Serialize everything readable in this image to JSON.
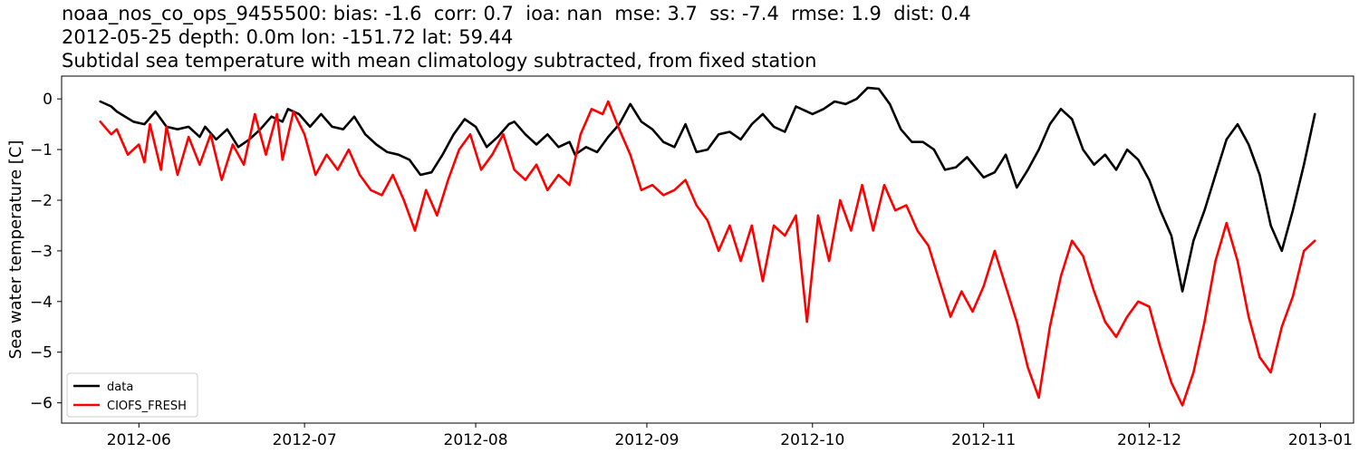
{
  "title_lines": [
    "noaa_nos_co_ops_9455500: bias: -1.6  corr: 0.7  ioa: nan  mse: 3.7  ss: -7.4  rmse: 1.9  dist: 0.4",
    "2012-05-25 depth: 0.0m lon: -151.72 lat: 59.44",
    "Subtidal sea temperature with mean climatology subtracted, from fixed station"
  ],
  "chart_data": {
    "type": "line",
    "title": "noaa_nos_co_ops_9455500: bias: -1.6  corr: 0.7  ioa: nan  mse: 3.7  ss: -7.4  rmse: 1.9  dist: 0.4\n2012-05-25 depth: 0.0m lon: -151.72 lat: 59.44\nSubtidal sea temperature with mean climatology subtracted, from fixed station",
    "xlabel": "",
    "ylabel": "Sea water temperature [C]",
    "xlim": [
      "2012-05-18",
      "2013-01-07"
    ],
    "ylim": [
      -6.4,
      0.45
    ],
    "x_ticks": [
      "2012-06-01",
      "2012-07-01",
      "2012-08-01",
      "2012-09-01",
      "2012-10-01",
      "2012-11-01",
      "2012-12-01",
      "2013-01-01"
    ],
    "x_tick_labels": [
      "2012-06",
      "2012-07",
      "2012-08",
      "2012-09",
      "2012-10",
      "2012-11",
      "2012-12",
      "2013-01"
    ],
    "y_ticks": [
      0,
      -1,
      -2,
      -3,
      -4,
      -5,
      -6
    ],
    "y_tick_labels": [
      "0",
      "−1",
      "−2",
      "−3",
      "−4",
      "−5",
      "−6"
    ],
    "grid": false,
    "legend": {
      "position": "lower-left"
    },
    "series": [
      {
        "name": "data",
        "color": "#000000",
        "points": [
          [
            "2012-05-25",
            -0.05
          ],
          [
            "2012-05-27",
            -0.15
          ],
          [
            "2012-05-28",
            -0.25
          ],
          [
            "2012-05-31",
            -0.45
          ],
          [
            "2012-06-02",
            -0.5
          ],
          [
            "2012-06-04",
            -0.25
          ],
          [
            "2012-06-06",
            -0.55
          ],
          [
            "2012-06-08",
            -0.6
          ],
          [
            "2012-06-10",
            -0.55
          ],
          [
            "2012-06-12",
            -0.75
          ],
          [
            "2012-06-13",
            -0.55
          ],
          [
            "2012-06-15",
            -0.8
          ],
          [
            "2012-06-17",
            -0.6
          ],
          [
            "2012-06-19",
            -0.95
          ],
          [
            "2012-06-21",
            -0.8
          ],
          [
            "2012-06-23",
            -0.6
          ],
          [
            "2012-06-25",
            -0.35
          ],
          [
            "2012-06-27",
            -0.45
          ],
          [
            "2012-06-28",
            -0.2
          ],
          [
            "2012-06-30",
            -0.3
          ],
          [
            "2012-07-02",
            -0.55
          ],
          [
            "2012-07-04",
            -0.3
          ],
          [
            "2012-07-06",
            -0.55
          ],
          [
            "2012-07-08",
            -0.6
          ],
          [
            "2012-07-10",
            -0.35
          ],
          [
            "2012-07-12",
            -0.7
          ],
          [
            "2012-07-14",
            -0.9
          ],
          [
            "2012-07-16",
            -1.05
          ],
          [
            "2012-07-18",
            -1.1
          ],
          [
            "2012-07-20",
            -1.2
          ],
          [
            "2012-07-22",
            -1.5
          ],
          [
            "2012-07-24",
            -1.45
          ],
          [
            "2012-07-26",
            -1.1
          ],
          [
            "2012-07-28",
            -0.7
          ],
          [
            "2012-07-30",
            -0.4
          ],
          [
            "2012-08-01",
            -0.55
          ],
          [
            "2012-08-03",
            -0.95
          ],
          [
            "2012-08-05",
            -0.75
          ],
          [
            "2012-08-07",
            -0.5
          ],
          [
            "2012-08-08",
            -0.45
          ],
          [
            "2012-08-10",
            -0.7
          ],
          [
            "2012-08-12",
            -0.9
          ],
          [
            "2012-08-14",
            -0.7
          ],
          [
            "2012-08-16",
            -0.95
          ],
          [
            "2012-08-18",
            -0.85
          ],
          [
            "2012-08-19",
            -1.1
          ],
          [
            "2012-08-21",
            -0.95
          ],
          [
            "2012-08-23",
            -1.05
          ],
          [
            "2012-08-25",
            -0.75
          ],
          [
            "2012-08-27",
            -0.5
          ],
          [
            "2012-08-29",
            -0.1
          ],
          [
            "2012-08-31",
            -0.45
          ],
          [
            "2012-09-02",
            -0.6
          ],
          [
            "2012-09-04",
            -0.85
          ],
          [
            "2012-09-06",
            -0.95
          ],
          [
            "2012-09-08",
            -0.5
          ],
          [
            "2012-09-10",
            -1.05
          ],
          [
            "2012-09-12",
            -1.0
          ],
          [
            "2012-09-14",
            -0.7
          ],
          [
            "2012-09-16",
            -0.65
          ],
          [
            "2012-09-18",
            -0.8
          ],
          [
            "2012-09-20",
            -0.5
          ],
          [
            "2012-09-22",
            -0.3
          ],
          [
            "2012-09-24",
            -0.55
          ],
          [
            "2012-09-26",
            -0.65
          ],
          [
            "2012-09-28",
            -0.15
          ],
          [
            "2012-10-01",
            -0.3
          ],
          [
            "2012-10-03",
            -0.2
          ],
          [
            "2012-10-05",
            -0.05
          ],
          [
            "2012-10-07",
            -0.1
          ],
          [
            "2012-10-09",
            0.0
          ],
          [
            "2012-10-11",
            0.22
          ],
          [
            "2012-10-13",
            0.2
          ],
          [
            "2012-10-15",
            -0.1
          ],
          [
            "2012-10-17",
            -0.6
          ],
          [
            "2012-10-19",
            -0.85
          ],
          [
            "2012-10-21",
            -0.85
          ],
          [
            "2012-10-23",
            -1.0
          ],
          [
            "2012-10-25",
            -1.4
          ],
          [
            "2012-10-27",
            -1.35
          ],
          [
            "2012-10-29",
            -1.15
          ],
          [
            "2012-11-01",
            -1.55
          ],
          [
            "2012-11-03",
            -1.45
          ],
          [
            "2012-11-05",
            -1.1
          ],
          [
            "2012-11-07",
            -1.75
          ],
          [
            "2012-11-09",
            -1.4
          ],
          [
            "2012-11-11",
            -1.0
          ],
          [
            "2012-11-13",
            -0.5
          ],
          [
            "2012-11-15",
            -0.2
          ],
          [
            "2012-11-17",
            -0.4
          ],
          [
            "2012-11-19",
            -1.0
          ],
          [
            "2012-11-21",
            -1.3
          ],
          [
            "2012-11-23",
            -1.1
          ],
          [
            "2012-11-25",
            -1.4
          ],
          [
            "2012-11-27",
            -1.0
          ],
          [
            "2012-11-29",
            -1.2
          ],
          [
            "2012-12-01",
            -1.6
          ],
          [
            "2012-12-03",
            -2.2
          ],
          [
            "2012-12-05",
            -2.7
          ],
          [
            "2012-12-07",
            -3.8
          ],
          [
            "2012-12-09",
            -2.8
          ],
          [
            "2012-12-11",
            -2.2
          ],
          [
            "2012-12-13",
            -1.5
          ],
          [
            "2012-12-15",
            -0.8
          ],
          [
            "2012-12-17",
            -0.5
          ],
          [
            "2012-12-19",
            -0.9
          ],
          [
            "2012-12-21",
            -1.5
          ],
          [
            "2012-12-23",
            -2.5
          ],
          [
            "2012-12-25",
            -3.0
          ],
          [
            "2012-12-27",
            -2.2
          ],
          [
            "2012-12-29",
            -1.3
          ],
          [
            "2012-12-31",
            -0.3
          ]
        ]
      },
      {
        "name": "CIOFS_FRESH",
        "color": "#ff0000",
        "points": [
          [
            "2012-05-25",
            -0.45
          ],
          [
            "2012-05-27",
            -0.7
          ],
          [
            "2012-05-28",
            -0.6
          ],
          [
            "2012-05-30",
            -1.1
          ],
          [
            "2012-06-01",
            -0.9
          ],
          [
            "2012-06-02",
            -1.25
          ],
          [
            "2012-06-03",
            -0.5
          ],
          [
            "2012-06-05",
            -1.4
          ],
          [
            "2012-06-06",
            -0.55
          ],
          [
            "2012-06-08",
            -1.5
          ],
          [
            "2012-06-10",
            -0.75
          ],
          [
            "2012-06-12",
            -1.3
          ],
          [
            "2012-06-14",
            -0.7
          ],
          [
            "2012-06-16",
            -1.6
          ],
          [
            "2012-06-18",
            -0.9
          ],
          [
            "2012-06-20",
            -1.3
          ],
          [
            "2012-06-22",
            -0.3
          ],
          [
            "2012-06-24",
            -1.1
          ],
          [
            "2012-06-26",
            -0.3
          ],
          [
            "2012-06-27",
            -1.2
          ],
          [
            "2012-06-29",
            -0.25
          ],
          [
            "2012-07-01",
            -0.7
          ],
          [
            "2012-07-03",
            -1.5
          ],
          [
            "2012-07-05",
            -1.1
          ],
          [
            "2012-07-07",
            -1.4
          ],
          [
            "2012-07-09",
            -1.0
          ],
          [
            "2012-07-11",
            -1.5
          ],
          [
            "2012-07-13",
            -1.8
          ],
          [
            "2012-07-15",
            -1.9
          ],
          [
            "2012-07-17",
            -1.5
          ],
          [
            "2012-07-19",
            -2.0
          ],
          [
            "2012-07-21",
            -2.6
          ],
          [
            "2012-07-23",
            -1.8
          ],
          [
            "2012-07-25",
            -2.3
          ],
          [
            "2012-07-27",
            -1.6
          ],
          [
            "2012-07-29",
            -1.0
          ],
          [
            "2012-07-31",
            -0.7
          ],
          [
            "2012-08-02",
            -1.4
          ],
          [
            "2012-08-04",
            -1.1
          ],
          [
            "2012-08-06",
            -0.7
          ],
          [
            "2012-08-08",
            -1.4
          ],
          [
            "2012-08-10",
            -1.6
          ],
          [
            "2012-08-12",
            -1.3
          ],
          [
            "2012-08-14",
            -1.8
          ],
          [
            "2012-08-16",
            -1.5
          ],
          [
            "2012-08-18",
            -1.7
          ],
          [
            "2012-08-20",
            -0.7
          ],
          [
            "2012-08-22",
            -0.2
          ],
          [
            "2012-08-24",
            -0.3
          ],
          [
            "2012-08-25",
            -0.05
          ],
          [
            "2012-08-27",
            -0.6
          ],
          [
            "2012-08-29",
            -1.1
          ],
          [
            "2012-08-31",
            -1.8
          ],
          [
            "2012-09-02",
            -1.7
          ],
          [
            "2012-09-04",
            -1.9
          ],
          [
            "2012-09-06",
            -1.8
          ],
          [
            "2012-09-08",
            -1.6
          ],
          [
            "2012-09-10",
            -2.1
          ],
          [
            "2012-09-12",
            -2.4
          ],
          [
            "2012-09-14",
            -3.0
          ],
          [
            "2012-09-16",
            -2.5
          ],
          [
            "2012-09-18",
            -3.2
          ],
          [
            "2012-09-20",
            -2.5
          ],
          [
            "2012-09-22",
            -3.6
          ],
          [
            "2012-09-24",
            -2.5
          ],
          [
            "2012-09-26",
            -2.7
          ],
          [
            "2012-09-28",
            -2.3
          ],
          [
            "2012-09-30",
            -4.4
          ],
          [
            "2012-10-02",
            -2.3
          ],
          [
            "2012-10-04",
            -3.2
          ],
          [
            "2012-10-06",
            -2.0
          ],
          [
            "2012-10-08",
            -2.6
          ],
          [
            "2012-10-10",
            -1.7
          ],
          [
            "2012-10-12",
            -2.6
          ],
          [
            "2012-10-14",
            -1.7
          ],
          [
            "2012-10-16",
            -2.2
          ],
          [
            "2012-10-18",
            -2.1
          ],
          [
            "2012-10-20",
            -2.6
          ],
          [
            "2012-10-22",
            -2.9
          ],
          [
            "2012-10-24",
            -3.6
          ],
          [
            "2012-10-26",
            -4.3
          ],
          [
            "2012-10-28",
            -3.8
          ],
          [
            "2012-10-30",
            -4.2
          ],
          [
            "2012-11-01",
            -3.7
          ],
          [
            "2012-11-03",
            -3.0
          ],
          [
            "2012-11-05",
            -3.7
          ],
          [
            "2012-11-07",
            -4.4
          ],
          [
            "2012-11-09",
            -5.3
          ],
          [
            "2012-11-11",
            -5.9
          ],
          [
            "2012-11-13",
            -4.5
          ],
          [
            "2012-11-15",
            -3.5
          ],
          [
            "2012-11-17",
            -2.8
          ],
          [
            "2012-11-19",
            -3.1
          ],
          [
            "2012-11-21",
            -3.8
          ],
          [
            "2012-11-23",
            -4.4
          ],
          [
            "2012-11-25",
            -4.7
          ],
          [
            "2012-11-27",
            -4.3
          ],
          [
            "2012-11-29",
            -4.0
          ],
          [
            "2012-12-01",
            -4.1
          ],
          [
            "2012-12-03",
            -4.9
          ],
          [
            "2012-12-05",
            -5.6
          ],
          [
            "2012-12-07",
            -6.05
          ],
          [
            "2012-12-09",
            -5.4
          ],
          [
            "2012-12-11",
            -4.4
          ],
          [
            "2012-12-13",
            -3.2
          ],
          [
            "2012-12-15",
            -2.45
          ],
          [
            "2012-12-17",
            -3.2
          ],
          [
            "2012-12-19",
            -4.3
          ],
          [
            "2012-12-21",
            -5.1
          ],
          [
            "2012-12-23",
            -5.4
          ],
          [
            "2012-12-25",
            -4.5
          ],
          [
            "2012-12-27",
            -3.9
          ],
          [
            "2012-12-29",
            -3.0
          ],
          [
            "2012-12-31",
            -2.8
          ]
        ]
      }
    ]
  }
}
